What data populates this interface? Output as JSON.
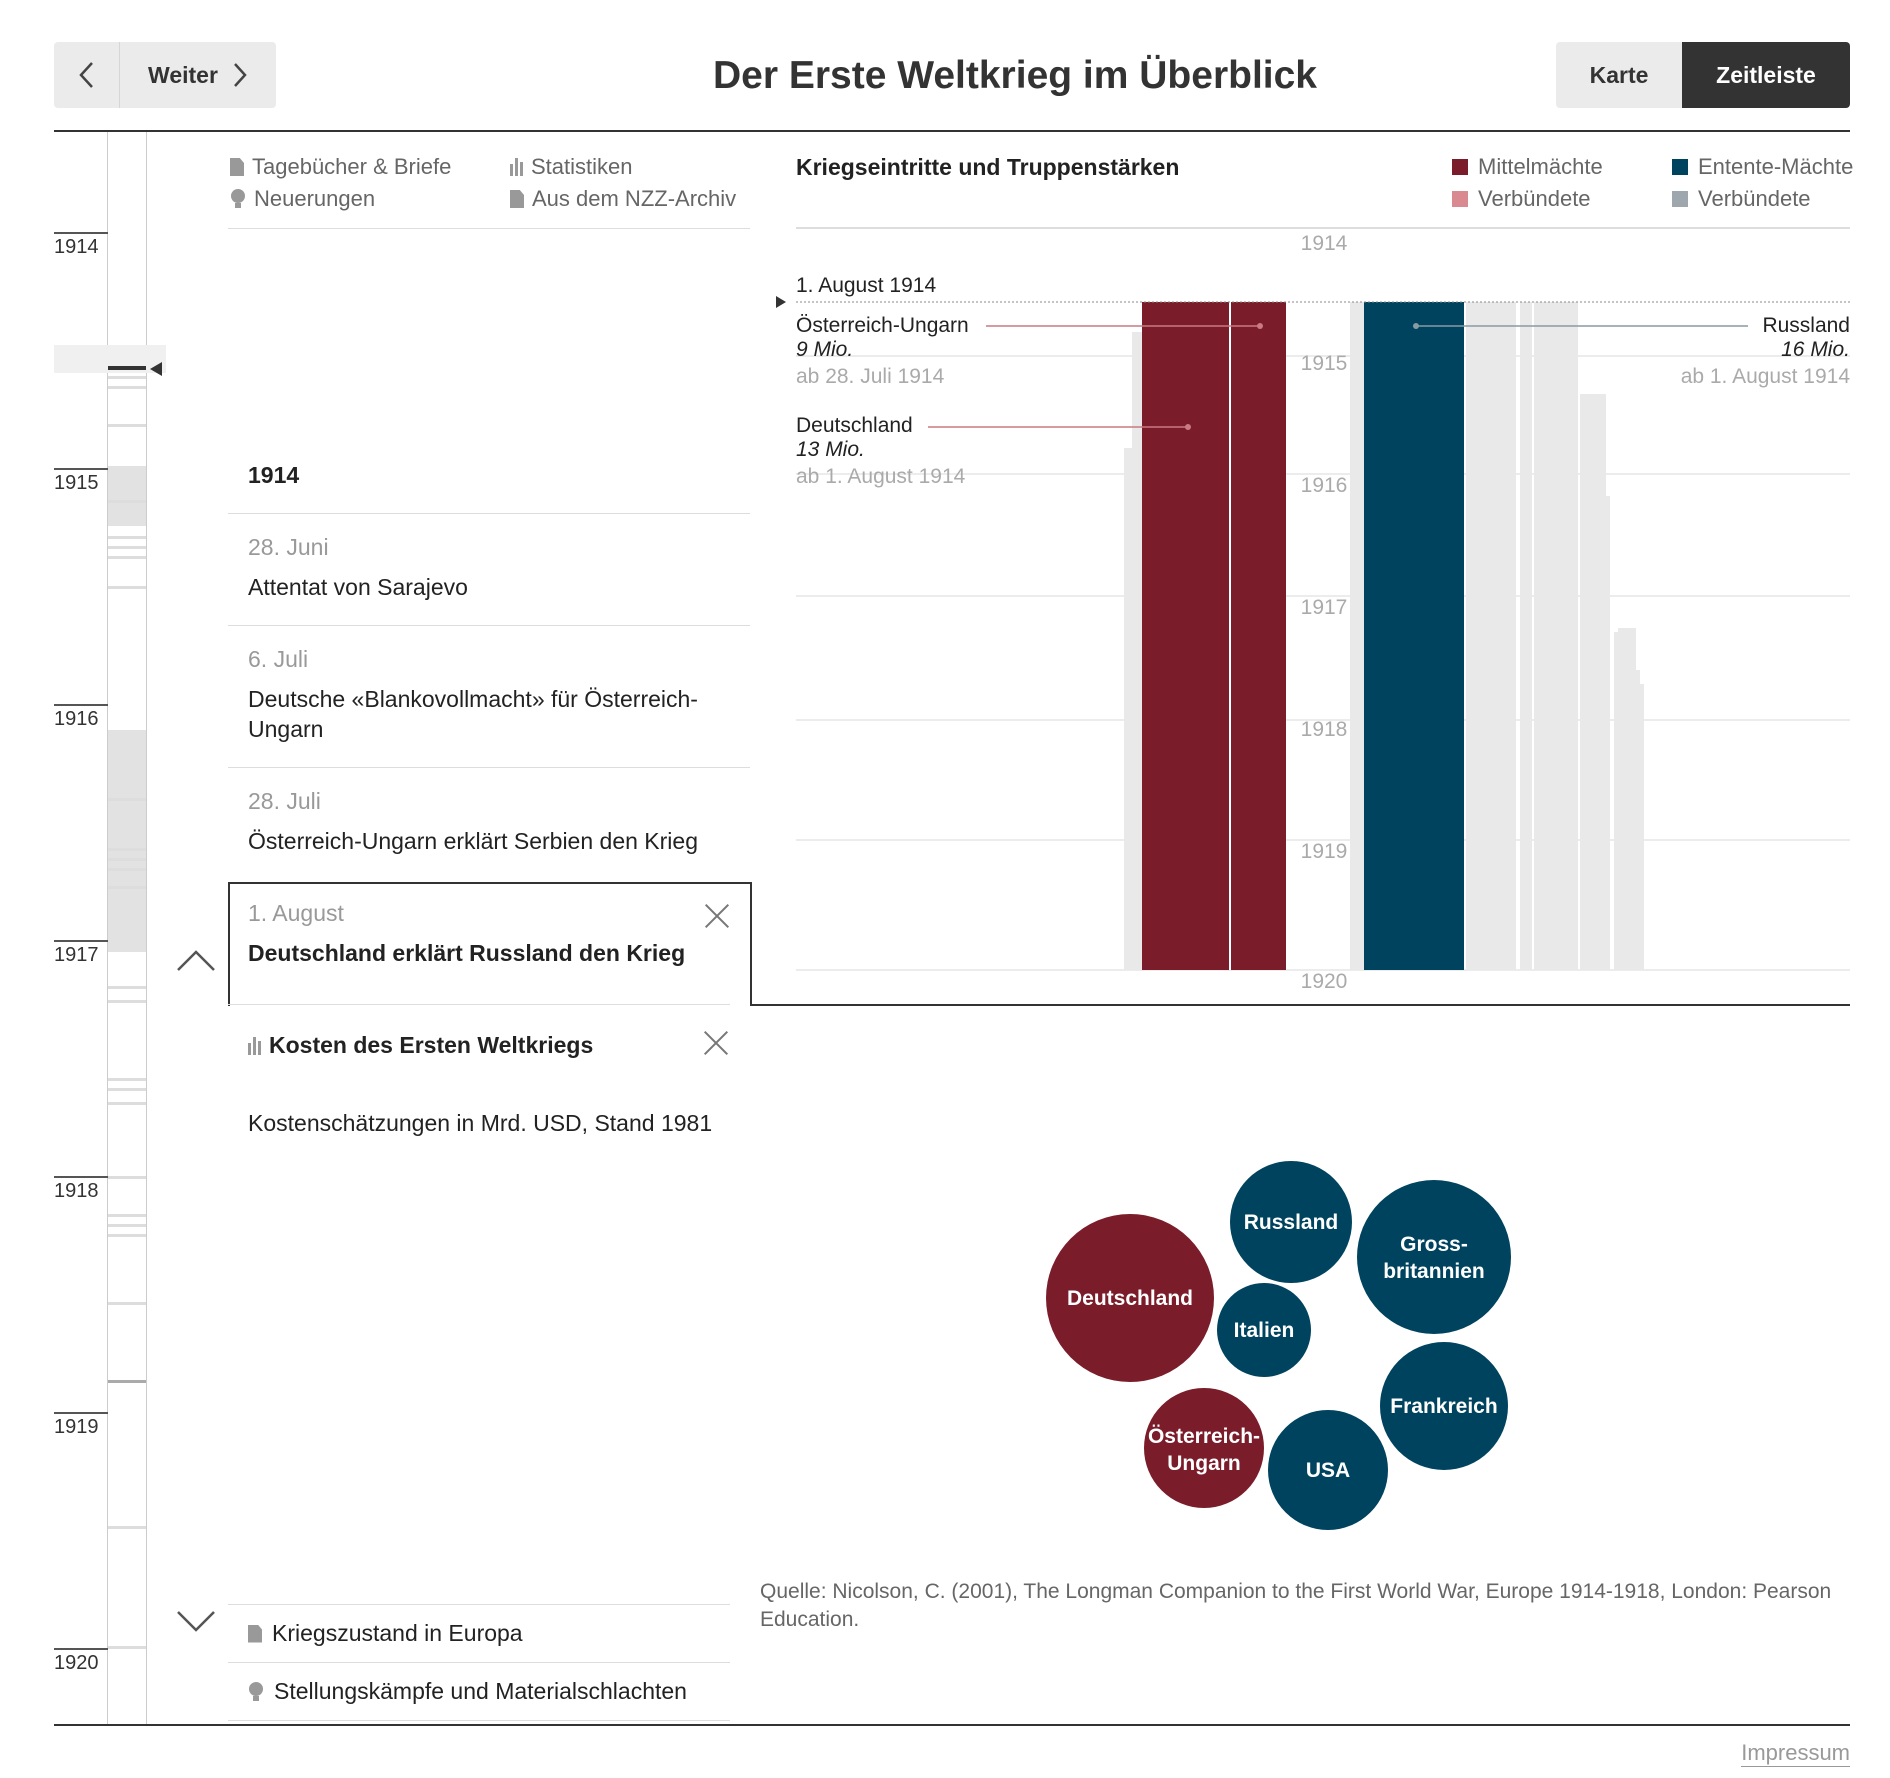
{
  "header": {
    "prev_icon": "chevron-left-icon",
    "next_label": "Weiter",
    "title": "Der Erste Weltkrieg im Überblick",
    "views": [
      "Karte",
      "Zeitleiste"
    ],
    "active_view": "Zeitleiste"
  },
  "timeline": {
    "years": [
      "1914",
      "1915",
      "1916",
      "1917",
      "1918",
      "1919",
      "1920"
    ]
  },
  "categories": {
    "diaries": "Tagebücher & Briefe",
    "stats": "Statistiken",
    "innovations": "Neuerungen",
    "archive": "Aus dem NZZ-Archiv"
  },
  "events": {
    "year_heading": "1914",
    "items": [
      {
        "date": "28. Juni",
        "text": "Attentat von Sarajevo"
      },
      {
        "date": "6. Juli",
        "text": "Deutsche «Blankovollmacht» für Österreich-Ungarn"
      },
      {
        "date": "28. Juli",
        "text": "Österreich-Ungarn erklärt Serbien den Krieg"
      }
    ],
    "active": {
      "date": "1. August",
      "text": "Deutschland erklärt Russland den Krieg"
    },
    "stat_panel": {
      "title": "Kosten des Ersten Weltkriegs",
      "subtitle": "Kostenschätzungen in Mrd. USD, Stand 1981"
    },
    "next_items": [
      {
        "icon": "document-icon",
        "text": "Kriegszustand in Europa"
      },
      {
        "icon": "bulb-icon",
        "text": "Stellungskämpfe und Materialschlachten"
      }
    ]
  },
  "troops_chart": {
    "title": "Kriegseintritte und Truppenstärken",
    "legend": {
      "central": "Mittelmächte",
      "central_allies": "Verbündete",
      "entente": "Entente-Mächte",
      "entente_allies": "Verbündete"
    },
    "colors": {
      "central": "#7b1c2a",
      "entente": "#00435f",
      "central_light": "#d98a91",
      "entente_light": "#9da7ad",
      "grey": "#e8e8e8"
    },
    "current_date": "1. August 1914",
    "annotations": [
      {
        "name": "Österreich-Ungarn",
        "value": "9 Mio.",
        "since": "ab 28. Juli 1914"
      },
      {
        "name": "Deutschland",
        "value": "13 Mio.",
        "since": "ab 1. August 1914"
      },
      {
        "name": "Russland",
        "value": "16 Mio.",
        "since": "ab 1. August 1914"
      }
    ]
  },
  "chart_data": [
    {
      "type": "bar",
      "title": "Kriegseintritte und Truppenstärken",
      "axis_labels": [
        "1914",
        "1915",
        "1916",
        "1917",
        "1918",
        "1919",
        "1920"
      ],
      "series": [
        {
          "name": "Österreich-Ungarn",
          "values": [
            9
          ],
          "unit": "Mio.",
          "since": "28. Juli 1914"
        },
        {
          "name": "Deutschland",
          "values": [
            13
          ],
          "unit": "Mio.",
          "since": "1. August 1914"
        },
        {
          "name": "Russland",
          "values": [
            16
          ],
          "unit": "Mio.",
          "since": "1. August 1914"
        }
      ]
    },
    {
      "type": "bubble",
      "title": "Kosten des Ersten Weltkriegs",
      "subtitle": "Kostenschätzungen in Mrd. USD, Stand 1981",
      "bubbles": [
        {
          "name": "Deutschland",
          "side": "central",
          "value": 58
        },
        {
          "name": "Österreich-Ungarn",
          "side": "central",
          "value": 23
        },
        {
          "name": "Russland",
          "side": "entente",
          "value": 30
        },
        {
          "name": "Gross-britannien",
          "side": "entente",
          "value": 47
        },
        {
          "name": "Italien",
          "side": "entente",
          "value": 18
        },
        {
          "name": "Frankreich",
          "side": "entente",
          "value": 33
        },
        {
          "name": "USA",
          "side": "entente",
          "value": 28
        }
      ]
    }
  ],
  "source": "Quelle: Nicolson, C. (2001), The Longman Companion to the First World War, Europe 1914-1918, London: Pearson Education.",
  "footer": {
    "impressum": "Impressum"
  }
}
